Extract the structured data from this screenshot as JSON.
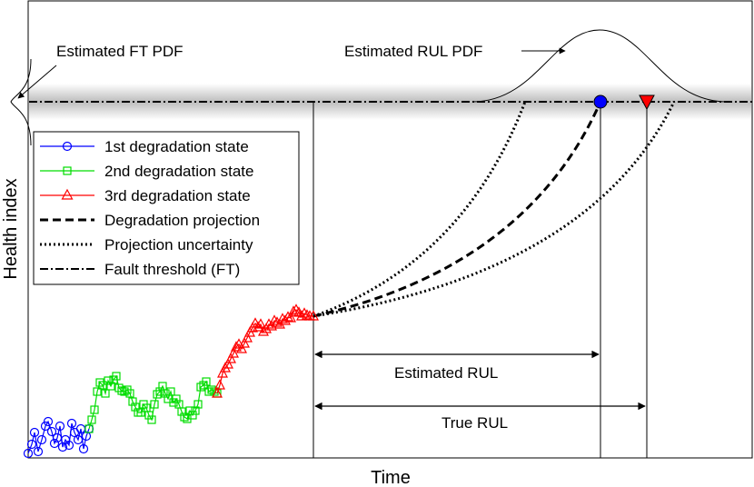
{
  "diagram": {
    "xlabel": "Time",
    "ylabel": "Health index",
    "annotations": {
      "ft_pdf": "Estimated FT PDF",
      "rul_pdf": "Estimated RUL PDF",
      "estimated_rul": "Estimated RUL",
      "true_rul": "True RUL"
    },
    "legend": [
      {
        "label": "1st degradation state",
        "color": "#0000ff",
        "marker": "circle",
        "line": "solid"
      },
      {
        "label": "2nd degradation state",
        "color": "#00dd00",
        "marker": "square",
        "line": "solid"
      },
      {
        "label": "3rd degradation state",
        "color": "#ff0000",
        "marker": "triangle",
        "line": "solid"
      },
      {
        "label": "Degradation projection",
        "color": "#000000",
        "marker": "none",
        "line": "dashed"
      },
      {
        "label": "Projection uncertainty",
        "color": "#000000",
        "marker": "none",
        "line": "dotted"
      },
      {
        "label": "Fault threshold (FT)",
        "color": "#000000",
        "marker": "none",
        "line": "dashdot"
      }
    ],
    "markers": {
      "estimated_eol_color": "#0000ff",
      "true_eol_color": "#ff0000"
    }
  }
}
